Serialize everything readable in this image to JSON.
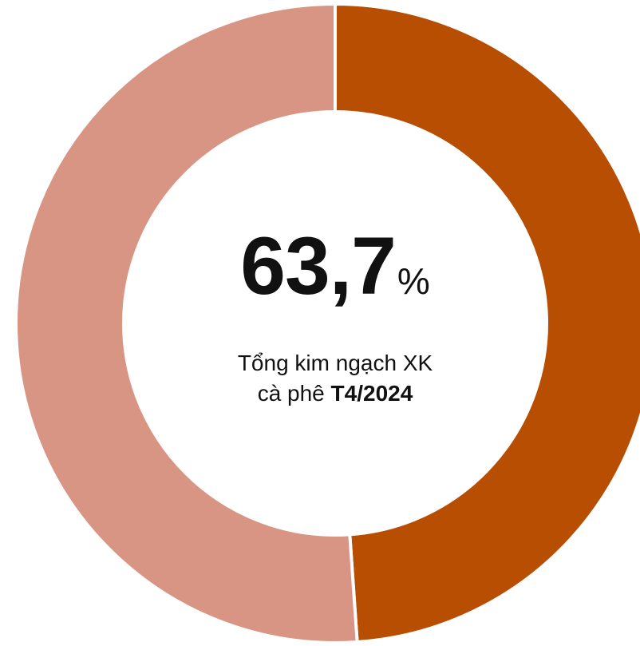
{
  "chart_data": {
    "type": "pie",
    "donut": true,
    "slices": [
      {
        "value": 48.9,
        "color": "#b84e02"
      },
      {
        "value": 51.1,
        "color": "#d89584"
      }
    ],
    "start_angle_deg": 0,
    "direction": "clockwise"
  },
  "center": {
    "value": "63,7",
    "unit": "%",
    "caption_line1": "Tổng kim ngạch XK",
    "caption_line2_prefix": "cà phê ",
    "caption_line2_bold": "T4/2024"
  }
}
